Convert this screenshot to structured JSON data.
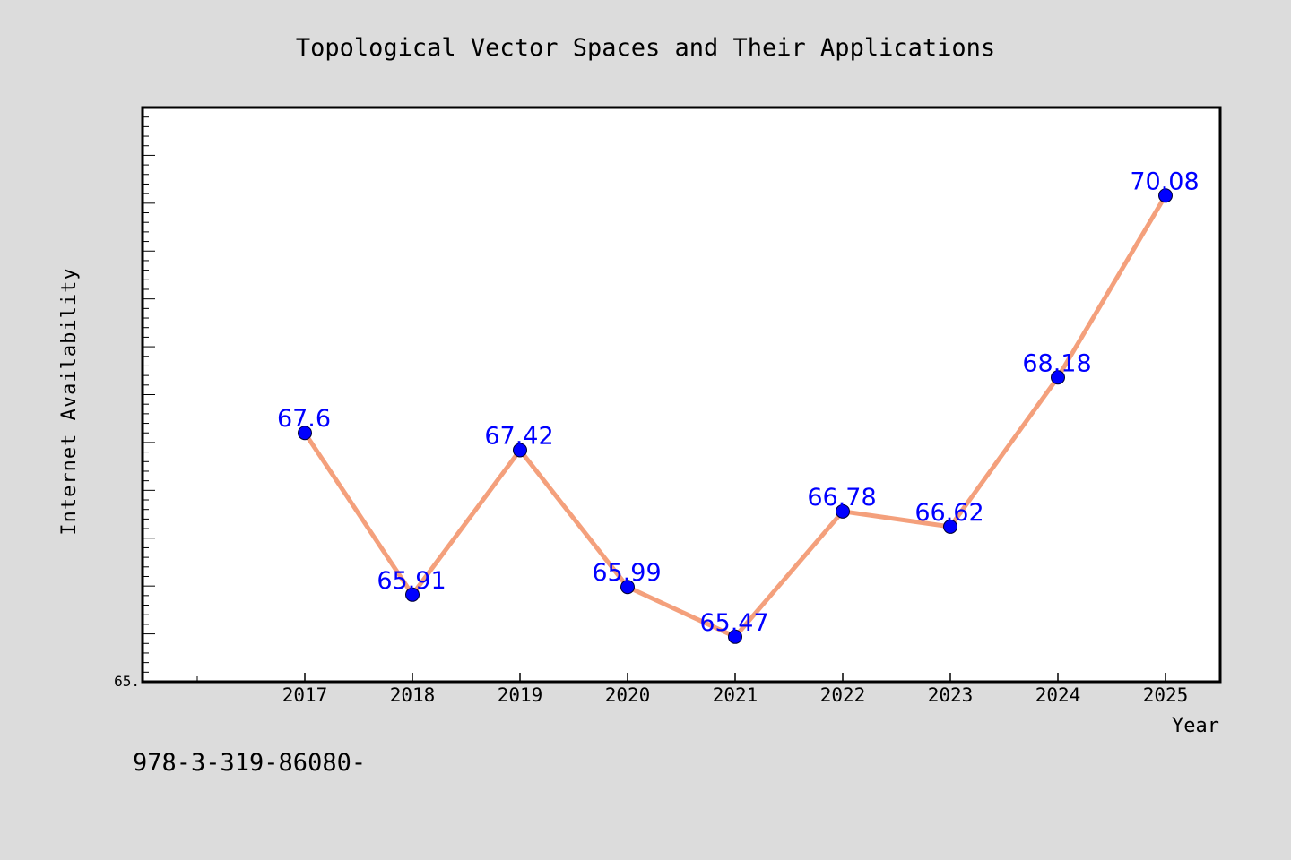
{
  "chart_data": {
    "type": "line",
    "title": "Topological Vector Spaces and Their Applications",
    "xlabel": "Year",
    "ylabel": "Internet Availability",
    "x": [
      "2017",
      "2018",
      "2019",
      "2020",
      "2021",
      "2022",
      "2023",
      "2024",
      "2025"
    ],
    "values": [
      67.6,
      65.91,
      67.42,
      65.99,
      65.47,
      66.78,
      66.62,
      68.18,
      70.08
    ],
    "data_labels": [
      "67.6",
      "65.91",
      "67.42",
      "65.99",
      "65.47",
      "66.78",
      "66.62",
      "68.18",
      "70.08"
    ],
    "ylim": [
      65.0,
      71.0
    ],
    "y_tick_labels": [
      "65."
    ],
    "grid": false,
    "legend": "none",
    "colors": {
      "background": "#dcdcdc",
      "plot_background": "#ffffff",
      "line": "#f4a07c",
      "marker": "#0000ff",
      "data_label": "#0000ff"
    }
  },
  "footer": {
    "isbn": "978-3-319-86080-"
  }
}
